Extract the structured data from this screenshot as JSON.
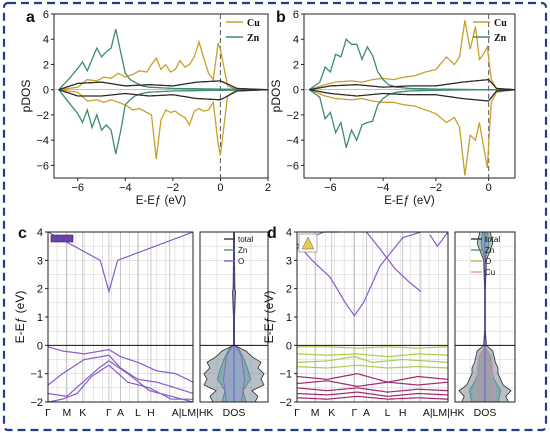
{
  "colors": {
    "cu": "#c8a02d",
    "zn": "#3f8a73",
    "total": "#2b2b2b",
    "o": "#8a5bc8",
    "band": "#8a5bc8",
    "o_d": "#a6cf48",
    "cu_d": "#d88fc0",
    "band_d": "#a0286a",
    "fermi": "#666666"
  },
  "chart_data": [
    {
      "id": "a",
      "panel_label": "a",
      "type": "line",
      "xlabel": "E-Eƒ (eV)",
      "ylabel": "pDOS",
      "xlim": [
        -7,
        2
      ],
      "ylim": [
        -7,
        6
      ],
      "xticks": [
        -6,
        -4,
        -2,
        0,
        2
      ],
      "yticks": [
        -6,
        -4,
        -2,
        0,
        2,
        4,
        6
      ],
      "legend": "top-right",
      "fermi_level": 0,
      "series": [
        {
          "name": "Cu",
          "color": "cu",
          "x": [
            -6.8,
            -6.0,
            -5.6,
            -5.2,
            -4.9,
            -4.6,
            -4.3,
            -4.0,
            -3.7,
            -3.4,
            -3.1,
            -2.9,
            -2.7,
            -2.5,
            -2.3,
            -2.1,
            -1.9,
            -1.7,
            -1.5,
            -1.3,
            -1.1,
            -0.9,
            -0.7,
            -0.5,
            -0.3,
            -0.1,
            0.0,
            0.3,
            0.7,
            2.0
          ],
          "up": [
            0,
            0.2,
            0.8,
            0.7,
            1.0,
            0.9,
            1.3,
            1.0,
            1.2,
            1.5,
            1.4,
            2.0,
            2.5,
            1.6,
            2.0,
            1.4,
            1.6,
            2.3,
            1.8,
            2.0,
            2.6,
            3.8,
            2.5,
            1.3,
            0.8,
            3.7,
            3.2,
            0.3,
            0,
            0
          ],
          "down": [
            0,
            -0.2,
            -0.9,
            -0.8,
            -1.0,
            -0.8,
            -1.0,
            -1.2,
            -1.6,
            -1.5,
            -1.8,
            -2.0,
            -5.5,
            -2.4,
            -1.6,
            -1.8,
            -1.7,
            -2.0,
            -2.2,
            -2.8,
            -1.7,
            -1.5,
            -1.7,
            -1.6,
            -1.0,
            -4.3,
            -5.2,
            -0.5,
            0,
            0
          ]
        },
        {
          "name": "Zn",
          "color": "zn",
          "x": [
            -6.8,
            -6.3,
            -6.0,
            -5.8,
            -5.6,
            -5.4,
            -5.2,
            -5.0,
            -4.8,
            -4.6,
            -4.4,
            -4.2,
            -4.0,
            -3.8,
            -3.6,
            -3.3,
            -3.0,
            -2.0,
            0.0,
            2.0
          ],
          "up": [
            0,
            1.0,
            1.7,
            2.2,
            1.5,
            2.4,
            3.3,
            2.6,
            3.0,
            3.3,
            4.8,
            3.0,
            1.3,
            0.8,
            0.6,
            0.3,
            0.2,
            0.1,
            0.05,
            0
          ],
          "down": [
            0,
            -1.2,
            -1.9,
            -2.6,
            -1.6,
            -3.0,
            -2.0,
            -3.2,
            -2.8,
            -3.2,
            -5.1,
            -3.3,
            -1.2,
            -0.8,
            -0.5,
            -0.3,
            -0.2,
            -0.1,
            -0.05,
            0
          ]
        },
        {
          "name": "",
          "color": "total",
          "x": [
            -6.8,
            -6.0,
            -5.0,
            -4.0,
            -3.0,
            -2.0,
            -1.0,
            0.0,
            0.7,
            2.0
          ],
          "up": [
            0,
            0.5,
            0.6,
            0.3,
            0.4,
            0.3,
            0.6,
            0.7,
            0.1,
            0
          ],
          "down": [
            0,
            -0.5,
            -0.5,
            -0.3,
            -0.5,
            -0.4,
            -0.7,
            -0.8,
            -0.1,
            0
          ]
        }
      ]
    },
    {
      "id": "b",
      "panel_label": "b",
      "type": "line",
      "xlabel": "E-Eƒ (eV)",
      "ylabel": "pDOS",
      "xlim": [
        -7,
        1
      ],
      "ylim": [
        -7,
        6
      ],
      "xticks": [
        -6,
        -4,
        -2,
        0
      ],
      "yticks": [
        -6,
        -4,
        -2,
        0,
        2,
        4,
        6
      ],
      "legend": "top-right",
      "fermi_level": 0,
      "series": [
        {
          "name": "Cu",
          "color": "cu",
          "x": [
            -6.8,
            -6.2,
            -5.8,
            -5.2,
            -4.8,
            -4.4,
            -4.0,
            -3.6,
            -3.2,
            -2.8,
            -2.4,
            -2.0,
            -1.6,
            -1.3,
            -1.1,
            -0.9,
            -0.7,
            -0.5,
            -0.35,
            -0.2,
            -0.05,
            0.1,
            0.3,
            1.0
          ],
          "up": [
            0,
            0.4,
            0.6,
            0.7,
            0.6,
            0.8,
            0.9,
            0.8,
            1.0,
            1.1,
            1.4,
            1.6,
            2.6,
            2.0,
            2.6,
            5.5,
            3.2,
            5.0,
            2.4,
            2.8,
            3.4,
            0.8,
            0.1,
            0
          ],
          "down": [
            0,
            -0.5,
            -0.7,
            -0.8,
            -0.7,
            -0.9,
            -1.0,
            -1.0,
            -1.2,
            -1.3,
            -1.6,
            -1.9,
            -2.6,
            -2.2,
            -3.0,
            -6.8,
            -3.6,
            -4.0,
            -2.6,
            -4.4,
            -6.2,
            -1.0,
            -0.2,
            0
          ]
        },
        {
          "name": "Zn",
          "color": "zn",
          "x": [
            -6.8,
            -6.4,
            -6.2,
            -6.0,
            -5.8,
            -5.6,
            -5.4,
            -5.2,
            -5.0,
            -4.8,
            -4.6,
            -4.4,
            -4.2,
            -4.0,
            -3.8,
            -3.5,
            -3.0,
            -2.0,
            0.0,
            1.0
          ],
          "up": [
            0,
            0.6,
            1.8,
            1.4,
            2.8,
            2.6,
            4.0,
            3.6,
            3.6,
            2.4,
            3.4,
            2.7,
            1.4,
            0.8,
            0.4,
            0.2,
            0.1,
            0.05,
            0,
            0
          ],
          "down": [
            0,
            -0.6,
            -2.3,
            -1.8,
            -3.4,
            -2.6,
            -4.6,
            -3.2,
            -4.0,
            -2.8,
            -2.6,
            -2.5,
            -1.2,
            -0.7,
            -0.4,
            -0.2,
            -0.1,
            -0.05,
            0,
            0
          ]
        },
        {
          "name": "",
          "color": "total",
          "x": [
            -6.8,
            -6.0,
            -5.0,
            -4.0,
            -3.0,
            -2.0,
            -1.0,
            0.0,
            0.3,
            1.0
          ],
          "up": [
            0,
            0.3,
            0.4,
            0.2,
            0.3,
            0.3,
            0.6,
            0.8,
            0.1,
            0
          ],
          "down": [
            0,
            -0.3,
            -0.5,
            -0.3,
            -0.4,
            -0.4,
            -0.7,
            -0.9,
            -0.1,
            0
          ]
        }
      ]
    },
    {
      "id": "c",
      "panel_label": "c",
      "type": "line",
      "ylabel": "E-Eƒ (eV)",
      "ylim": [
        -2,
        4
      ],
      "yticks": [
        -2,
        -1,
        0,
        1,
        2,
        3,
        4
      ],
      "kpath": [
        "Γ",
        "M",
        "K",
        "Γ",
        "A",
        "L",
        "H",
        "A|LM|HK"
      ],
      "kpath_pos": [
        0,
        0.13,
        0.24,
        0.42,
        0.5,
        0.62,
        0.71,
        0.84
      ],
      "fermi_level": 0,
      "bands": [
        {
          "color": "band",
          "k": [
            0,
            0.36,
            0.42,
            0.48,
            1
          ],
          "e": [
            4.0,
            3.0,
            1.9,
            3.0,
            4.0
          ]
        },
        {
          "color": "band",
          "k": [
            0,
            0.1,
            0.25,
            0.42,
            0.5,
            0.62,
            0.75,
            0.88,
            1
          ],
          "e": [
            -0.05,
            -0.2,
            -0.3,
            -0.15,
            -0.4,
            -0.6,
            -0.9,
            -1.0,
            -1.3
          ]
        },
        {
          "color": "band",
          "k": [
            0,
            0.1,
            0.25,
            0.42,
            0.5,
            0.62,
            0.75,
            0.88,
            1
          ],
          "e": [
            -1.4,
            -1.0,
            -0.5,
            -0.35,
            -0.8,
            -1.2,
            -1.3,
            -1.5,
            -1.7
          ]
        },
        {
          "color": "band",
          "k": [
            0,
            0.13,
            0.24,
            0.35,
            0.42,
            0.55,
            0.7,
            0.85,
            1
          ],
          "e": [
            -1.7,
            -1.8,
            -1.3,
            -0.8,
            -0.55,
            -1.0,
            -1.6,
            -1.8,
            -2.0
          ]
        },
        {
          "color": "band",
          "k": [
            0,
            0.1,
            0.2,
            0.3,
            0.42,
            0.55,
            0.7,
            0.85,
            1
          ],
          "e": [
            -2.0,
            -1.9,
            -1.7,
            -1.1,
            -0.7,
            -1.3,
            -1.5,
            -1.9,
            -1.9
          ]
        }
      ],
      "dos": {
        "xlabel": "DOS",
        "legend": "top-right",
        "series": [
          {
            "name": "total",
            "color": "total",
            "e": [
              -2.0,
              -1.8,
              -1.6,
              -1.4,
              -1.2,
              -1.0,
              -0.8,
              -0.6,
              -0.4,
              -0.2,
              0.0,
              0.5,
              1.0,
              1.9,
              2.0,
              3.0,
              4.0
            ],
            "v": [
              0.7,
              0.8,
              0.6,
              1.0,
              0.9,
              1.0,
              0.8,
              0.9,
              0.6,
              0.4,
              0.02,
              0.02,
              0.02,
              0.05,
              0.03,
              0.02,
              0.02
            ]
          },
          {
            "name": "Zn",
            "color": "zn",
            "e": [
              -2.0,
              -1.6,
              -1.2,
              -0.8,
              -0.4,
              -0.1,
              0.0,
              4.0
            ],
            "v": [
              0.4,
              0.3,
              0.55,
              0.45,
              0.3,
              0.15,
              0.0,
              0.0
            ]
          },
          {
            "name": "O",
            "color": "o",
            "e": [
              -2.0,
              -1.6,
              -1.2,
              -0.8,
              -0.4,
              -0.1,
              0.0,
              4.0
            ],
            "v": [
              0.25,
              0.3,
              0.35,
              0.3,
              0.25,
              0.1,
              0.0,
              0.0
            ]
          }
        ]
      }
    },
    {
      "id": "d",
      "panel_label": "d",
      "type": "line",
      "ylabel": "E-Eƒ (eV)",
      "ylim": [
        -2,
        4
      ],
      "yticks": [
        -2,
        -1,
        0,
        1,
        2,
        3,
        4
      ],
      "kpath": [
        "Γ",
        "M",
        "K",
        "Γ",
        "A",
        "L",
        "H",
        "A|LM|HK"
      ],
      "kpath_pos": [
        0,
        0.12,
        0.23,
        0.38,
        0.46,
        0.6,
        0.7,
        0.82
      ],
      "fermi_level": 0,
      "bands": [
        {
          "color": "band",
          "k": [
            0,
            0.1,
            0.22,
            0.32,
            0.38,
            0.44,
            0.55,
            0.7,
            0.82
          ],
          "e": [
            3.6,
            3.0,
            2.4,
            1.5,
            1.05,
            1.5,
            2.8,
            3.8,
            4.0
          ]
        },
        {
          "color": "band",
          "k": [
            0,
            0.08,
            0.18,
            0.28
          ],
          "e": [
            3.4,
            3.8,
            4.0,
            4.0
          ]
        },
        {
          "color": "band",
          "k": [
            0.46,
            0.55,
            0.65,
            0.75,
            0.82
          ],
          "e": [
            4.0,
            3.4,
            2.7,
            2.2,
            1.9
          ]
        },
        {
          "color": "band",
          "k": [
            0.88,
            0.93,
            1
          ],
          "e": [
            3.9,
            3.5,
            4.0
          ]
        },
        {
          "color": "o_d",
          "k": [
            0,
            0.2,
            0.4,
            0.6,
            0.8,
            1
          ],
          "e": [
            -0.05,
            -0.05,
            -0.1,
            -0.05,
            -0.1,
            -0.05
          ]
        },
        {
          "color": "o_d",
          "k": [
            0,
            0.2,
            0.4,
            0.6,
            0.8,
            1
          ],
          "e": [
            -0.3,
            -0.35,
            -0.3,
            -0.4,
            -0.3,
            -0.35
          ]
        },
        {
          "color": "o_d",
          "k": [
            0,
            0.2,
            0.38,
            0.5,
            0.7,
            1
          ],
          "e": [
            -0.6,
            -0.55,
            -0.4,
            -0.6,
            -0.5,
            -0.6
          ]
        },
        {
          "color": "o_d",
          "k": [
            0,
            0.2,
            0.4,
            0.6,
            0.8,
            1
          ],
          "e": [
            -0.75,
            -0.8,
            -0.7,
            -0.8,
            -0.75,
            -0.8
          ]
        },
        {
          "color": "band_d",
          "k": [
            0,
            0.2,
            0.4,
            0.6,
            0.8,
            1
          ],
          "e": [
            -1.1,
            -1.2,
            -1.0,
            -1.3,
            -1.1,
            -1.2
          ]
        },
        {
          "color": "band_d",
          "k": [
            0,
            0.2,
            0.4,
            0.6,
            0.8,
            1
          ],
          "e": [
            -1.35,
            -1.25,
            -1.45,
            -1.3,
            -1.4,
            -1.3
          ]
        },
        {
          "color": "band_d",
          "k": [
            0,
            0.2,
            0.4,
            0.6,
            0.8,
            1
          ],
          "e": [
            -1.5,
            -1.6,
            -1.5,
            -1.65,
            -1.55,
            -1.6
          ]
        },
        {
          "color": "band_d",
          "k": [
            0,
            0.2,
            0.4,
            0.6,
            0.8,
            1
          ],
          "e": [
            -1.7,
            -1.75,
            -1.65,
            -1.8,
            -1.7,
            -1.75
          ]
        },
        {
          "color": "band_d",
          "k": [
            0,
            0.2,
            0.4,
            0.6,
            0.8,
            1
          ],
          "e": [
            -1.85,
            -1.9,
            -1.8,
            -1.9,
            -1.85,
            -1.9
          ]
        }
      ],
      "dos": {
        "xlabel": "DOS",
        "legend": "top-right",
        "series": [
          {
            "name": "total",
            "color": "total",
            "e": [
              -2.0,
              -1.8,
              -1.6,
              -1.4,
              -1.2,
              -1.0,
              -0.8,
              -0.6,
              -0.4,
              -0.2,
              0.0,
              0.5,
              1.0,
              2.0,
              3.0,
              3.6,
              4.0
            ],
            "v": [
              0.9,
              0.8,
              1.0,
              0.7,
              0.6,
              0.5,
              0.5,
              0.4,
              0.35,
              0.3,
              0.05,
              0.02,
              0.02,
              0.02,
              0.05,
              0.3,
              0.2
            ]
          },
          {
            "name": "Zn",
            "color": "zn",
            "e": [
              -2.0,
              -1.6,
              -1.2,
              -0.8,
              -0.4,
              0.0,
              3.0,
              3.6,
              4.0
            ],
            "v": [
              0.5,
              0.6,
              0.35,
              0.25,
              0.2,
              0.0,
              0.0,
              0.15,
              0.1
            ]
          },
          {
            "name": "O",
            "color": "o_d",
            "e": [
              -2.0,
              -1.6,
              -1.2,
              -0.8,
              -0.4,
              0.0,
              4.0
            ],
            "v": [
              0.3,
              0.35,
              0.3,
              0.3,
              0.25,
              0.0,
              0.0
            ]
          },
          {
            "name": "Cu",
            "color": "cu_d",
            "e": [
              -2.0,
              -1.6,
              -1.2,
              -0.8,
              -0.4,
              0.0,
              4.0
            ],
            "v": [
              0.35,
              0.4,
              0.3,
              0.3,
              0.25,
              0.0,
              0.0
            ]
          }
        ]
      }
    }
  ]
}
